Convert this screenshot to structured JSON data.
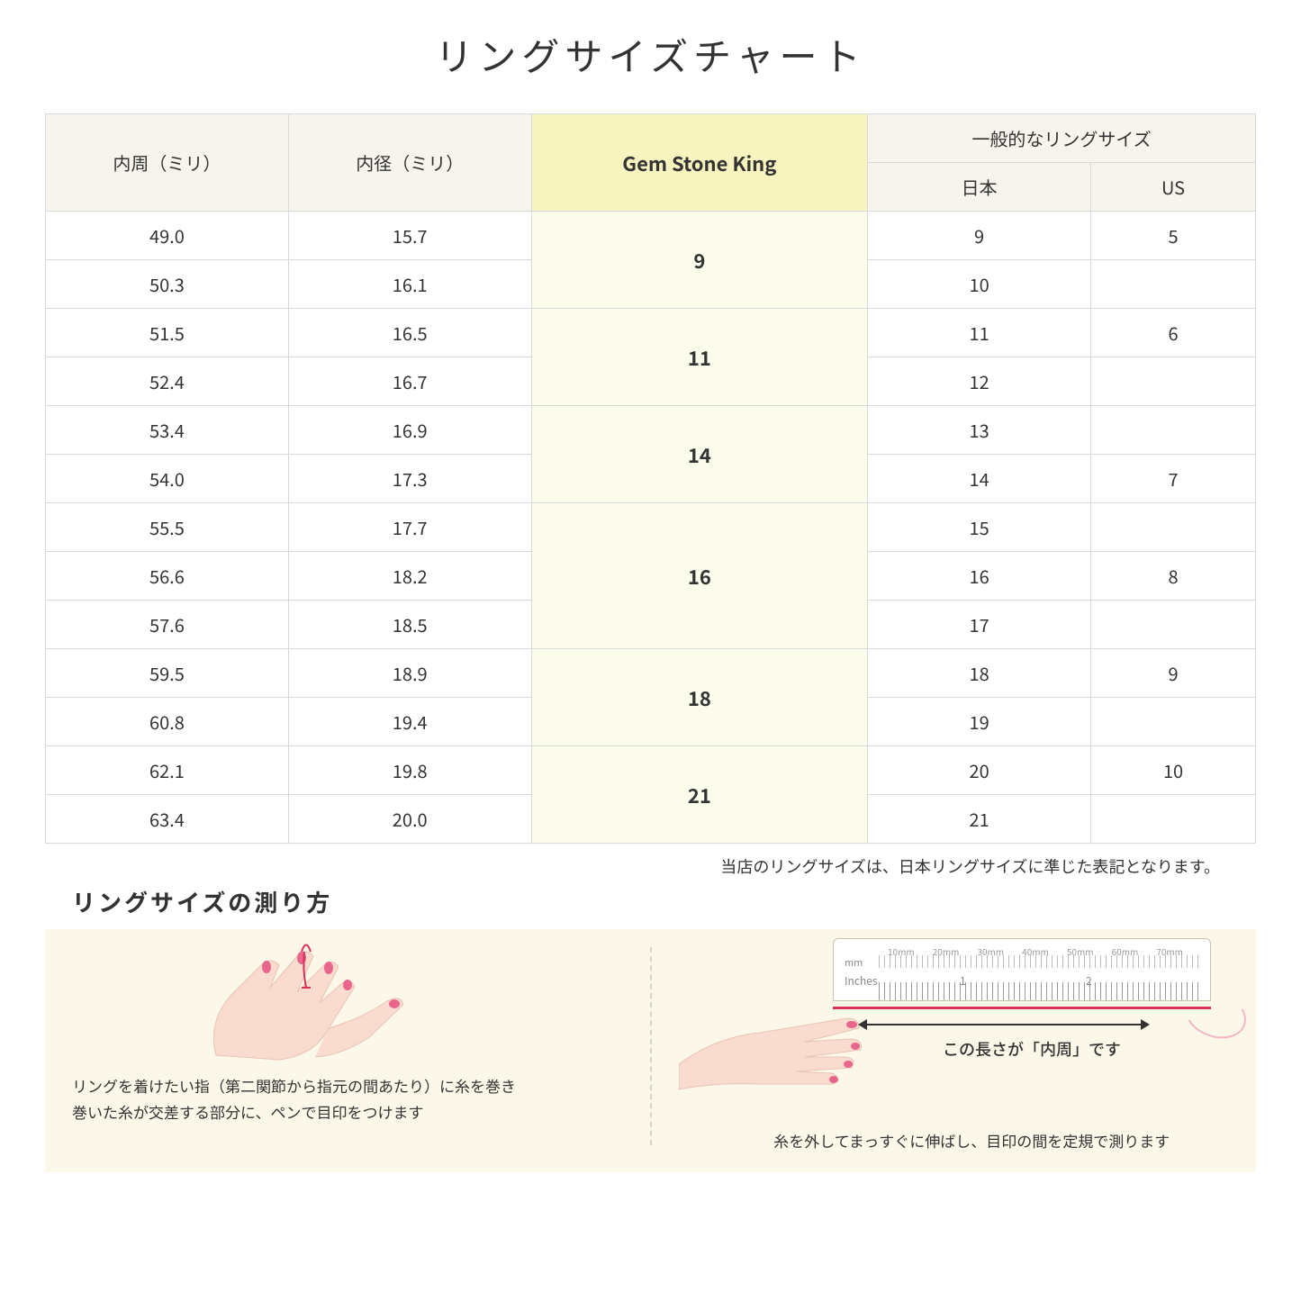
{
  "title": "リングサイズチャート",
  "headers": {
    "circumference": "内周（ミリ）",
    "diameter": "内径（ミリ）",
    "gsk": "Gem Stone King",
    "general": "一般的なリングサイズ",
    "jp": "日本",
    "us": "US"
  },
  "rows": [
    {
      "circ": "49.0",
      "dia": "15.7",
      "gsk": "9",
      "gsk_span": 2,
      "jp": "9",
      "us": "5"
    },
    {
      "circ": "50.3",
      "dia": "16.1",
      "jp": "10",
      "us": ""
    },
    {
      "circ": "51.5",
      "dia": "16.5",
      "gsk": "11",
      "gsk_span": 2,
      "jp": "11",
      "us": "6"
    },
    {
      "circ": "52.4",
      "dia": "16.7",
      "jp": "12",
      "us": ""
    },
    {
      "circ": "53.4",
      "dia": "16.9",
      "gsk": "14",
      "gsk_span": 2,
      "jp": "13",
      "us": ""
    },
    {
      "circ": "54.0",
      "dia": "17.3",
      "jp": "14",
      "us": "7"
    },
    {
      "circ": "55.5",
      "dia": "17.7",
      "gsk": "16",
      "gsk_span": 3,
      "jp": "15",
      "us": ""
    },
    {
      "circ": "56.6",
      "dia": "18.2",
      "jp": "16",
      "us": "8"
    },
    {
      "circ": "57.6",
      "dia": "18.5",
      "jp": "17",
      "us": ""
    },
    {
      "circ": "59.5",
      "dia": "18.9",
      "gsk": "18",
      "gsk_span": 2,
      "jp": "18",
      "us": "9"
    },
    {
      "circ": "60.8",
      "dia": "19.4",
      "jp": "19",
      "us": ""
    },
    {
      "circ": "62.1",
      "dia": "19.8",
      "gsk": "21",
      "gsk_span": 2,
      "jp": "20",
      "us": "10"
    },
    {
      "circ": "63.4",
      "dia": "20.0",
      "jp": "21",
      "us": ""
    }
  ],
  "note": "当店のリングサイズは、日本リングサイズに準じた表記となります。",
  "measure": {
    "title": "リングサイズの測り方",
    "step1a": "リングを着けたい指（第二関節から指元の間あたり）に糸を巻き",
    "step1b": "巻いた糸が交差する部分に、ペンで目印をつけます",
    "step2": "糸を外してまっすぐに伸ばし、目印の間を定規で測ります",
    "arrow_label": "この長さが「内周」です",
    "ruler": {
      "mm_unit": "mm",
      "in_unit": "Inches",
      "mm_marks": [
        "10mm",
        "20mm",
        "30mm",
        "40mm",
        "50mm",
        "60mm",
        "70mm"
      ],
      "in_marks": [
        "1",
        "2"
      ]
    }
  },
  "colors": {
    "header_bg": "#f6f4ec",
    "gsk_header_bg": "#f7f4bf",
    "gsk_cell_bg": "#fcfced",
    "panel_bg": "#fbf8e9",
    "border": "#d9d9d9",
    "hand_skin": "#f9dbcf",
    "nail": "#e8668c",
    "thread": "#d9325a"
  }
}
